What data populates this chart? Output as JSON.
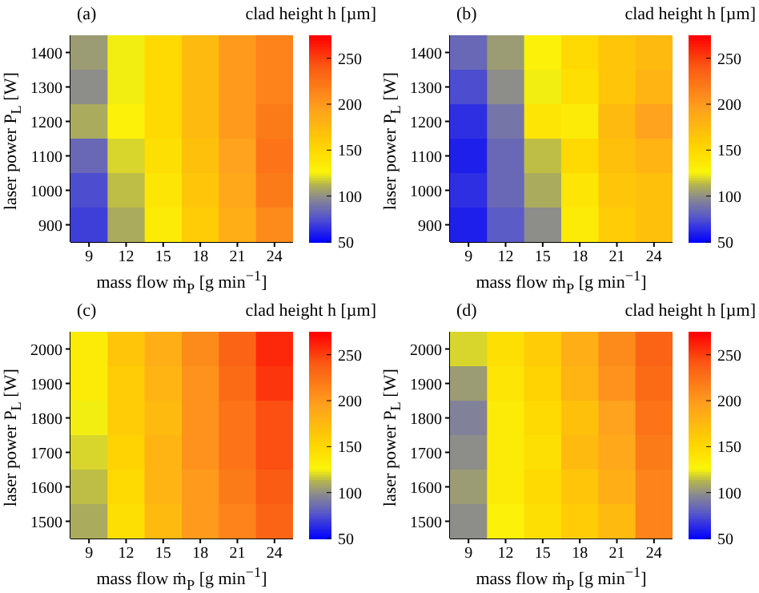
{
  "chart_data": [
    {
      "type": "heatmap",
      "title": "(a)",
      "xlabel": "mass flow ṁ$_{P}$ [g min$^{−1}$]",
      "ylabel": "laser power P$_{L}$ [W]",
      "clabel": "clad height h [µm]",
      "categories": [
        "9",
        "12",
        "15",
        "18",
        "21",
        "24"
      ],
      "y_categories": [
        "1400",
        "1300",
        "1200",
        "1100",
        "1000",
        "900"
      ],
      "cells": [
        [
          105,
          125,
          150,
          175,
          200,
          215
        ],
        [
          100,
          125,
          150,
          175,
          200,
          215
        ],
        [
          110,
          130,
          150,
          175,
          200,
          220
        ],
        [
          85,
          120,
          145,
          170,
          195,
          225
        ],
        [
          75,
          115,
          140,
          165,
          190,
          220
        ],
        [
          70,
          110,
          135,
          160,
          185,
          210
        ]
      ],
      "clim": [
        50,
        275
      ],
      "cticks": [
        50,
        100,
        150,
        200,
        250
      ]
    },
    {
      "type": "heatmap",
      "title": "(b)",
      "xlabel": "mass flow ṁ$_{P}$ [g min$^{−1}$]",
      "ylabel": "laser power P$_{L}$ [W]",
      "clabel": "clad height h [µm]",
      "categories": [
        "9",
        "12",
        "15",
        "18",
        "21",
        "24"
      ],
      "y_categories": [
        "1400",
        "1300",
        "1200",
        "1100",
        "1000",
        "900"
      ],
      "cells": [
        [
          85,
          105,
          130,
          150,
          165,
          175
        ],
        [
          75,
          100,
          125,
          145,
          165,
          180
        ],
        [
          65,
          90,
          140,
          135,
          175,
          195
        ],
        [
          60,
          85,
          115,
          150,
          170,
          180
        ],
        [
          65,
          85,
          110,
          140,
          165,
          170
        ],
        [
          60,
          80,
          100,
          135,
          160,
          170
        ]
      ],
      "clim": [
        50,
        275
      ],
      "cticks": [
        50,
        100,
        150,
        200,
        250
      ]
    },
    {
      "type": "heatmap",
      "title": "(c)",
      "xlabel": "mass flow ṁ$_{P}$ [g min$^{−1}$]",
      "ylabel": "laser power P$_{L}$ [W]",
      "clabel": "clad height h [µm]",
      "categories": [
        "9",
        "12",
        "15",
        "18",
        "21",
        "24"
      ],
      "y_categories": [
        "2000",
        "1900",
        "1800",
        "1700",
        "1600",
        "1500"
      ],
      "cells": [
        [
          135,
          165,
          185,
          210,
          235,
          260
        ],
        [
          135,
          160,
          180,
          205,
          230,
          255
        ],
        [
          125,
          160,
          175,
          205,
          225,
          245
        ],
        [
          120,
          155,
          180,
          205,
          225,
          245
        ],
        [
          115,
          150,
          180,
          200,
          220,
          240
        ],
        [
          110,
          145,
          175,
          200,
          215,
          235
        ]
      ],
      "clim": [
        50,
        275
      ],
      "cticks": [
        50,
        100,
        150,
        200,
        250
      ]
    },
    {
      "type": "heatmap",
      "title": "(d)",
      "xlabel": "mass flow ṁ$_{P}$ [g min$^{−1}$]",
      "ylabel": "laser power P$_{L}$ [W]",
      "clabel": "clad height h [µm]",
      "categories": [
        "9",
        "12",
        "15",
        "18",
        "21",
        "24"
      ],
      "y_categories": [
        "2000",
        "1900",
        "1800",
        "1700",
        "1600",
        "1500"
      ],
      "cells": [
        [
          120,
          145,
          160,
          185,
          210,
          235
        ],
        [
          105,
          140,
          155,
          180,
          205,
          230
        ],
        [
          95,
          135,
          150,
          170,
          195,
          225
        ],
        [
          100,
          135,
          145,
          175,
          190,
          220
        ],
        [
          105,
          135,
          150,
          165,
          185,
          215
        ],
        [
          100,
          130,
          145,
          160,
          175,
          215
        ]
      ],
      "clim": [
        50,
        275
      ],
      "cticks": [
        50,
        100,
        150,
        200,
        250
      ]
    }
  ]
}
